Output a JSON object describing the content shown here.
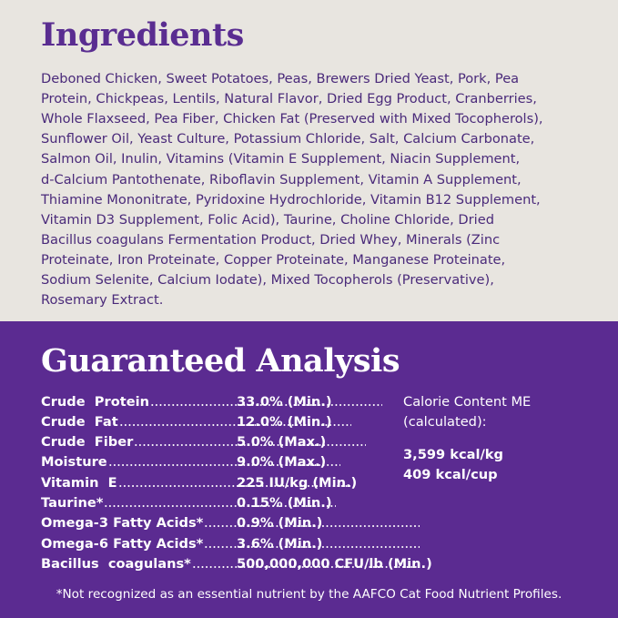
{
  "ingredients": {
    "title": "Ingredients",
    "lines": [
      "Deboned Chicken, Sweet Potatoes, Peas, Brewers Dried Yeast, Pork, Pea",
      "Protein, Chickpeas, Lentils, Natural Flavor, Dried Egg Product, Cranberries,",
      "Whole Flaxseed, Pea Fiber, Chicken Fat (Preserved with Mixed Tocopherols),",
      "Sunflower Oil, Yeast Culture, Potassium Chloride, Salt, Calcium Carbonate,",
      "Salmon Oil, Inulin, Vitamins (Vitamin E Supplement, Niacin Supplement,",
      "d-Calcium Pantothenate, Riboflavin Supplement, Vitamin A Supplement,",
      "Thiamine Mononitrate, Pyridoxine Hydrochloride, Vitamin B12 Supplement,",
      "Vitamin D3 Supplement, Folic Acid), Taurine, Choline Chloride, Dried",
      "Bacillus coagulans Fermentation Product, Dried Whey, Minerals (Zinc",
      "Proteinate, Iron Proteinate, Copper Proteinate, Manganese Proteinate,",
      "Sodium Selenite, Calcium Iodate), Mixed Tocopherols (Preservative),",
      "Rosemary Extract."
    ]
  },
  "analysis": {
    "title": "Guaranteed Analysis",
    "rows": [
      {
        "label": "Crude  Protein",
        "value": "33.0% (Min.)"
      },
      {
        "label": "Crude  Fat",
        "value": "12.0% (Min.)"
      },
      {
        "label": "Crude  Fiber",
        "value": "5.0% (Max.)"
      },
      {
        "label": "Moisture",
        "value": "9.0% (Max.)"
      },
      {
        "label": "Vitamin  E",
        "value": "225 IU/kg (Min.)"
      },
      {
        "label": "Taurine*",
        "value": "0.15% (Min.)"
      },
      {
        "label": "Omega-3 Fatty Acids*",
        "value": "0.9% (Min.)"
      },
      {
        "label": "Omega-6 Fatty Acids*",
        "value": "3.6% (Min.)"
      },
      {
        "label": "Bacillus  coagulans*",
        "value": "500,000,000 CFU/lb (Min.)"
      }
    ],
    "calorie": {
      "heading": [
        "Calorie Content ME",
        "(calculated):"
      ],
      "values": [
        "3,599 kcal/kg",
        "409 kcal/cup"
      ]
    },
    "footnote": "*Not recognized as an essential nutrient by the AAFCO Cat Food Nutrient Profiles."
  }
}
